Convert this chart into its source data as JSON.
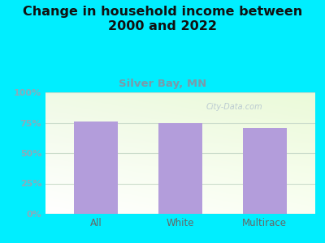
{
  "title": "Change in household income between\n2000 and 2022",
  "subtitle": "Silver Bay, MN",
  "categories": [
    "All",
    "White",
    "Multirace"
  ],
  "values": [
    76,
    75,
    71
  ],
  "bar_color": "#b39ddb",
  "title_fontsize": 11.5,
  "subtitle_fontsize": 9.5,
  "subtitle_color": "#7a9aaa",
  "title_color": "#111111",
  "background_color": "#00eeff",
  "plot_bg_color_topleft": "#eaf5ea",
  "plot_bg_color_topright": "#f0f5e8",
  "plot_bg_color_bottom": "#ffffff",
  "yticks": [
    0,
    25,
    50,
    75,
    100
  ],
  "ytick_labels": [
    "0%",
    "25%",
    "50%",
    "75%",
    "100%"
  ],
  "ylim": [
    0,
    100
  ],
  "tick_color": "#8aabbb",
  "xtick_color": "#666666",
  "watermark": "City-Data.com",
  "watermark_color": "#aabbcc",
  "grid_color": "#ccddcc"
}
